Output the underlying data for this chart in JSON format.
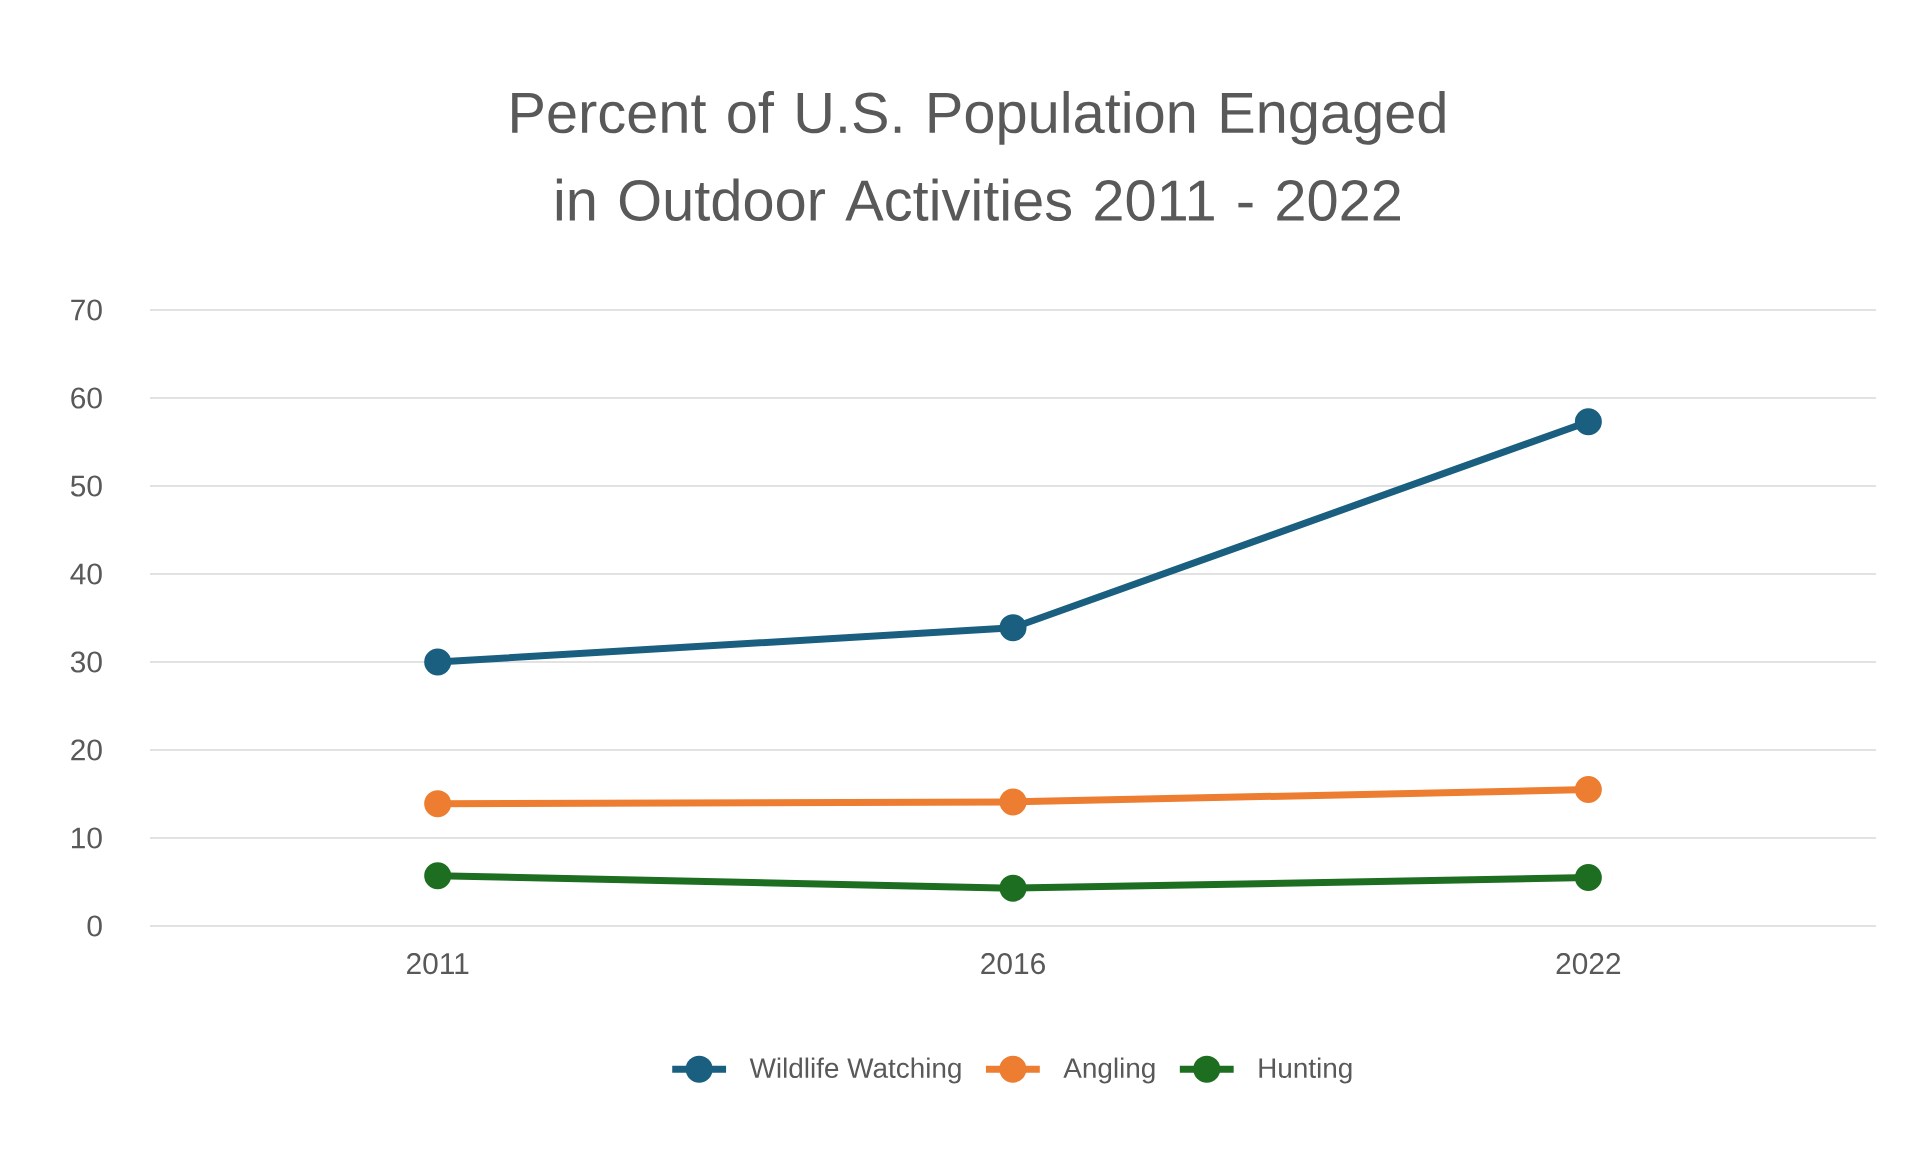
{
  "chart_data": {
    "type": "line",
    "title": "Percent of U.S. Population Engaged in Outdoor Activities 2011 - 2022",
    "categories": [
      "2011",
      "2016",
      "2022"
    ],
    "series": [
      {
        "name": "Wildlife Watching",
        "color": "#1a5f80",
        "values": [
          30.0,
          33.9,
          57.3
        ]
      },
      {
        "name": "Angling",
        "color": "#ed7d31",
        "values": [
          13.9,
          14.1,
          15.5
        ]
      },
      {
        "name": "Hunting",
        "color": "#1e6e22",
        "values": [
          5.7,
          4.3,
          5.5
        ]
      }
    ],
    "ylim": [
      0,
      70
    ],
    "yticks": [
      0,
      10,
      20,
      30,
      40,
      50,
      60,
      70
    ],
    "grid": "y",
    "legend": "bottom",
    "marker": "circle",
    "line_style": "solid"
  }
}
